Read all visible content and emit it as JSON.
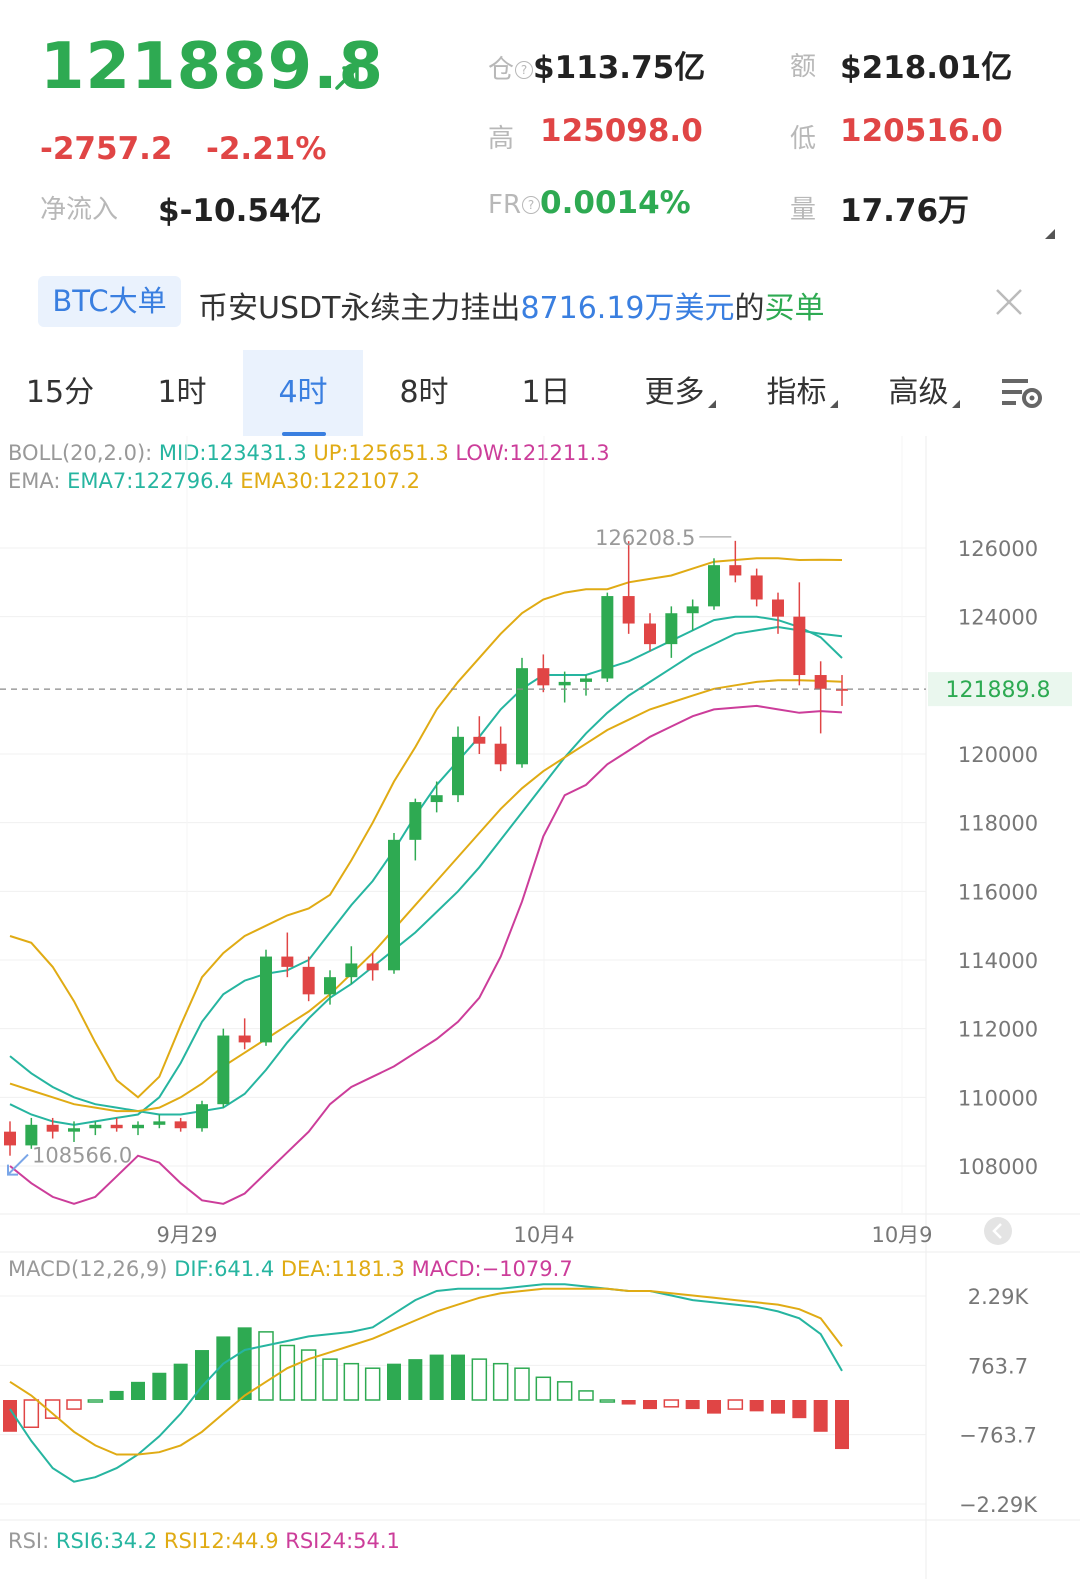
{
  "header": {
    "price": "121889.8",
    "change": "-2757.2",
    "change_pct": "-2.21%",
    "netflow_label": "净流入",
    "netflow_value": "$-10.54亿",
    "oi_label": "仓",
    "oi_value": "$113.75亿",
    "turnover_label": "额",
    "turnover_value": "$218.01亿",
    "high_label": "高",
    "high_value": "125098.0",
    "low_label": "低",
    "low_value": "120516.0",
    "fr_label": "FR",
    "fr_value": "0.0014%",
    "volume_label": "量",
    "volume_value": "17.76万"
  },
  "news": {
    "tag": "BTC大单",
    "text_prefix": "币安USDT永续主力挂出",
    "amount": "8716.19万美元",
    "text_mid": "的",
    "side": "买单"
  },
  "tabs": [
    "15分",
    "1时",
    "4时",
    "8时",
    "1日",
    "更多",
    "指标",
    "高级"
  ],
  "active_tab": "4时",
  "colors": {
    "up": "#2eaa52",
    "down": "#e04545",
    "accent": "#3a7fe0",
    "boll_mid": "#26b5a0",
    "boll_up": "#e0ab14",
    "boll_low": "#cc3d9a"
  },
  "indicators": {
    "boll_name": "BOLL(20,2.0):",
    "boll_mid": "MID:123431.3",
    "boll_up": "UP:125651.3",
    "boll_low": "LOW:121211.3",
    "ema_name": "EMA:",
    "ema7": "EMA7:122796.4",
    "ema30": "EMA30:122107.2",
    "macd_name": "MACD(12,26,9)",
    "dif": "DIF:641.4",
    "dea": "DEA:1181.3",
    "macd": "MACD:−1079.7",
    "rsi_name": "RSI:",
    "rsi6": "RSI6:34.2",
    "rsi12": "RSI12:44.9",
    "rsi24": "RSI24:54.1"
  },
  "chart_data": [
    {
      "type": "candlestick",
      "interval": "4时",
      "ylim": [
        106800,
        127300
      ],
      "y_ticks": [
        "126000",
        "124000",
        "120000",
        "118000",
        "116000",
        "114000",
        "112000",
        "110000",
        "108000"
      ],
      "x_ticks": [
        "9月29",
        "10月4",
        "10月9"
      ],
      "last_price": 121889.8,
      "last_price_label": "121889.8",
      "max_label": "126208.5",
      "min_label": "108566.0",
      "max_value": 126208.5,
      "min_value": 108566.0,
      "series": [
        {
          "name": "BOLL MID",
          "values": [
            111200,
            110700,
            110300,
            110000,
            109800,
            109700,
            109600,
            109500,
            109500,
            109600,
            109700,
            110100,
            110800,
            111600,
            112300,
            112900,
            113300,
            113800,
            114300,
            114800,
            115400,
            116000,
            116700,
            117500,
            118300,
            119100,
            119900,
            120600,
            121200,
            121700,
            122100,
            122500,
            122900,
            123200,
            123500,
            123600,
            123700,
            123600,
            123500,
            123431
          ]
        },
        {
          "name": "BOLL UP",
          "values": [
            114700,
            114500,
            113800,
            112800,
            111600,
            110500,
            110000,
            110600,
            112100,
            113500,
            114200,
            114700,
            115000,
            115300,
            115500,
            115900,
            116900,
            118000,
            119200,
            120200,
            121300,
            122100,
            122800,
            123500,
            124100,
            124500,
            124700,
            124800,
            124800,
            125000,
            125100,
            125200,
            125400,
            125600,
            125650,
            125700,
            125700,
            125650,
            125660,
            125651
          ]
        },
        {
          "name": "BOLL LOW",
          "values": [
            108000,
            107500,
            107100,
            106900,
            107100,
            107700,
            108300,
            108100,
            107500,
            107000,
            106900,
            107200,
            107800,
            108400,
            109000,
            109800,
            110300,
            110600,
            110900,
            111300,
            111700,
            112200,
            112900,
            114100,
            115700,
            117600,
            118800,
            119100,
            119700,
            120100,
            120500,
            120800,
            121100,
            121300,
            121350,
            121400,
            121300,
            121200,
            121250,
            121211
          ]
        },
        {
          "name": "EMA7",
          "values": [
            109800,
            109500,
            109300,
            109200,
            109300,
            109400,
            109500,
            110000,
            111000,
            112200,
            113000,
            113400,
            113600,
            113700,
            114000,
            114800,
            115600,
            116300,
            117200,
            118200,
            119100,
            119800,
            120500,
            121300,
            121900,
            122300,
            122300,
            122300,
            122500,
            122700,
            123000,
            123300,
            123600,
            123900,
            124000,
            124000,
            123900,
            123700,
            123400,
            122796
          ]
        },
        {
          "name": "EMA30",
          "values": [
            110400,
            110200,
            110000,
            109800,
            109700,
            109600,
            109600,
            109700,
            110000,
            110400,
            110900,
            111300,
            111700,
            112100,
            112500,
            113000,
            113600,
            114200,
            114900,
            115600,
            116300,
            117000,
            117700,
            118400,
            119000,
            119500,
            119900,
            120300,
            120700,
            121000,
            121300,
            121500,
            121700,
            121900,
            122000,
            122100,
            122150,
            122150,
            122130,
            122107
          ]
        }
      ],
      "candles_note": "OHLC approximated from visible 4h candles",
      "candles": [
        [
          109000,
          109300,
          108300,
          108600
        ],
        [
          108600,
          109400,
          108500,
          109200
        ],
        [
          109200,
          109400,
          108800,
          109000
        ],
        [
          109000,
          109300,
          108700,
          109100
        ],
        [
          109100,
          109300,
          108900,
          109200
        ],
        [
          109200,
          109400,
          109000,
          109100
        ],
        [
          109100,
          109300,
          108900,
          109200
        ],
        [
          109200,
          109500,
          109100,
          109300
        ],
        [
          109300,
          109400,
          109000,
          109100
        ],
        [
          109100,
          109900,
          109000,
          109800
        ],
        [
          109800,
          112000,
          109700,
          111800
        ],
        [
          111800,
          112300,
          111400,
          111600
        ],
        [
          111600,
          114300,
          111500,
          114100
        ],
        [
          114100,
          114800,
          113500,
          113800
        ],
        [
          113800,
          114100,
          112800,
          113000
        ],
        [
          113000,
          113700,
          112700,
          113500
        ],
        [
          113500,
          114400,
          113300,
          113900
        ],
        [
          113900,
          114200,
          113400,
          113700
        ],
        [
          113700,
          117700,
          113600,
          117500
        ],
        [
          117500,
          118700,
          116900,
          118600
        ],
        [
          118600,
          119200,
          118300,
          118800
        ],
        [
          118800,
          120800,
          118600,
          120500
        ],
        [
          120500,
          121100,
          120000,
          120300
        ],
        [
          120300,
          120800,
          119500,
          119700
        ],
        [
          119700,
          122800,
          119600,
          122500
        ],
        [
          122500,
          122900,
          121800,
          122000
        ],
        [
          122000,
          122400,
          121500,
          122100
        ],
        [
          122100,
          122300,
          121700,
          122200
        ],
        [
          122200,
          124700,
          122100,
          124600
        ],
        [
          124600,
          126200,
          123500,
          123800
        ],
        [
          123800,
          124100,
          123000,
          123200
        ],
        [
          123200,
          124300,
          122800,
          124100
        ],
        [
          124100,
          124500,
          123600,
          124300
        ],
        [
          124300,
          125700,
          124200,
          125500
        ],
        [
          125500,
          126208,
          125000,
          125200
        ],
        [
          125200,
          125400,
          124300,
          124500
        ],
        [
          124500,
          124700,
          123500,
          124000
        ],
        [
          124000,
          125000,
          122000,
          122300
        ],
        [
          122300,
          122700,
          120600,
          121900
        ],
        [
          121900,
          122300,
          121400,
          121889
        ]
      ]
    },
    {
      "type": "bar",
      "name": "MACD(12,26,9)",
      "y_ticks": [
        "2.29K",
        "763.7",
        "−763.7",
        "−2.29K"
      ],
      "ylim": [
        -2900,
        3200
      ],
      "series": [
        {
          "name": "DIF",
          "values": [
            -200,
            -900,
            -1500,
            -1800,
            -1700,
            -1500,
            -1200,
            -800,
            -300,
            300,
            800,
            1100,
            1200,
            1300,
            1400,
            1450,
            1500,
            1600,
            1900,
            2200,
            2400,
            2450,
            2450,
            2450,
            2500,
            2550,
            2550,
            2500,
            2450,
            2400,
            2400,
            2300,
            2200,
            2150,
            2100,
            2050,
            1950,
            1800,
            1450,
            641
          ]
        },
        {
          "name": "DEA",
          "values": [
            400,
            100,
            -300,
            -700,
            -1000,
            -1200,
            -1200,
            -1150,
            -1000,
            -700,
            -300,
            100,
            400,
            700,
            900,
            1050,
            1200,
            1350,
            1550,
            1750,
            1950,
            2100,
            2250,
            2350,
            2400,
            2450,
            2450,
            2450,
            2450,
            2400,
            2400,
            2350,
            2300,
            2250,
            2200,
            2150,
            2100,
            2000,
            1800,
            1181
          ]
        },
        {
          "name": "MACD",
          "values": [
            -700,
            -600,
            -400,
            -200,
            0,
            200,
            400,
            600,
            800,
            1100,
            1400,
            1600,
            1500,
            1200,
            1100,
            900,
            800,
            700,
            800,
            900,
            1000,
            1000,
            900,
            800,
            700,
            500,
            400,
            200,
            0,
            -100,
            -200,
            -150,
            -200,
            -300,
            -200,
            -250,
            -300,
            -400,
            -700,
            -1080
          ]
        }
      ]
    },
    {
      "type": "line",
      "name": "RSI",
      "series": [
        {
          "name": "RSI6",
          "values": [
            34.2
          ]
        },
        {
          "name": "RSI12",
          "values": [
            44.9
          ]
        },
        {
          "name": "RSI24",
          "values": [
            54.1
          ]
        }
      ]
    }
  ]
}
